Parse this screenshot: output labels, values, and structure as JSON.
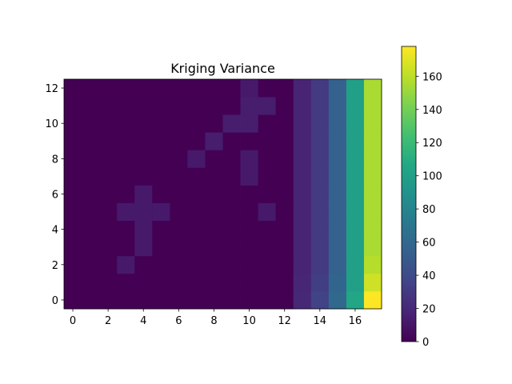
{
  "chart_data": {
    "type": "heatmap",
    "title": "Kriging Variance",
    "xlabel": "",
    "ylabel": "",
    "x_ticks": [
      0,
      2,
      4,
      6,
      8,
      10,
      12,
      14,
      16
    ],
    "y_ticks": [
      0,
      2,
      4,
      6,
      8,
      10,
      12
    ],
    "x_tick_labels": [
      "0",
      "2",
      "4",
      "6",
      "8",
      "10",
      "12",
      "14",
      "16"
    ],
    "y_tick_labels": [
      "0",
      "2",
      "4",
      "6",
      "8",
      "10",
      "12"
    ],
    "xlim": [
      -0.5,
      17.5
    ],
    "ylim": [
      -0.5,
      12.5
    ],
    "origin": "lower",
    "colormap": "viridis",
    "colorbar": {
      "range": [
        0,
        178
      ],
      "ticks": [
        0,
        20,
        40,
        60,
        80,
        100,
        120,
        140,
        160
      ],
      "tick_labels": [
        "0",
        "20",
        "40",
        "60",
        "80",
        "100",
        "120",
        "140",
        "160"
      ]
    },
    "values": [
      [
        0,
        0,
        0,
        0,
        0,
        0,
        0,
        0,
        0,
        0,
        0,
        0,
        0,
        20,
        35,
        60,
        105,
        178
      ],
      [
        0,
        0,
        0,
        0,
        0,
        0,
        0,
        0,
        0,
        0,
        0,
        0,
        0,
        19,
        32,
        58,
        100,
        165
      ],
      [
        0,
        0,
        0,
        12,
        0,
        0,
        0,
        0,
        0,
        0,
        0,
        0,
        0,
        18,
        30,
        55,
        100,
        158
      ],
      [
        0,
        0,
        0,
        0,
        12,
        0,
        0,
        0,
        0,
        0,
        0,
        0,
        0,
        18,
        30,
        55,
        100,
        155
      ],
      [
        0,
        0,
        0,
        0,
        12,
        0,
        0,
        0,
        0,
        0,
        0,
        0,
        0,
        18,
        30,
        55,
        100,
        155
      ],
      [
        0,
        0,
        0,
        12,
        12,
        12,
        0,
        0,
        0,
        0,
        0,
        12,
        0,
        18,
        30,
        55,
        100,
        155
      ],
      [
        0,
        0,
        0,
        0,
        12,
        0,
        0,
        0,
        0,
        0,
        0,
        0,
        0,
        18,
        30,
        55,
        100,
        155
      ],
      [
        0,
        0,
        0,
        0,
        0,
        0,
        0,
        0,
        0,
        0,
        12,
        0,
        0,
        18,
        30,
        55,
        100,
        155
      ],
      [
        0,
        0,
        0,
        0,
        0,
        0,
        0,
        12,
        0,
        0,
        12,
        0,
        0,
        18,
        30,
        55,
        100,
        155
      ],
      [
        0,
        0,
        0,
        0,
        0,
        0,
        0,
        0,
        14,
        0,
        0,
        0,
        0,
        18,
        30,
        55,
        100,
        155
      ],
      [
        0,
        0,
        0,
        0,
        0,
        0,
        0,
        0,
        0,
        14,
        14,
        0,
        0,
        18,
        30,
        55,
        100,
        155
      ],
      [
        0,
        0,
        0,
        0,
        0,
        0,
        0,
        0,
        0,
        0,
        14,
        14,
        0,
        18,
        30,
        55,
        100,
        155
      ],
      [
        0,
        0,
        0,
        0,
        0,
        0,
        0,
        0,
        0,
        0,
        12,
        0,
        0,
        18,
        30,
        55,
        100,
        155
      ]
    ]
  }
}
